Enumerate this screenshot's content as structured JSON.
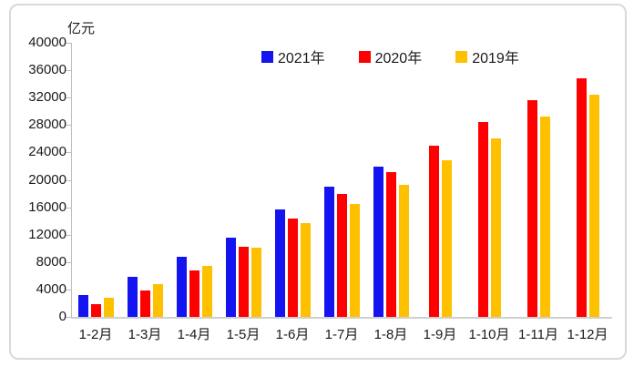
{
  "chart_data": {
    "type": "bar",
    "unit_label": "亿元",
    "ylabel": "亿元",
    "categories": [
      "1-2月",
      "1-3月",
      "1-4月",
      "1-5月",
      "1-6月",
      "1-7月",
      "1-8月",
      "1-9月",
      "1-10月",
      "1-11月",
      "1-12月"
    ],
    "series": [
      {
        "name": "2021年",
        "color": "#1414f0",
        "values": [
          3200,
          5900,
          8800,
          11600,
          15700,
          19000,
          21900,
          null,
          null,
          null,
          null
        ]
      },
      {
        "name": "2020年",
        "color": "#ff0000",
        "values": [
          1900,
          3800,
          6800,
          10300,
          14400,
          18000,
          21200,
          25000,
          28500,
          31600,
          34800
        ]
      },
      {
        "name": "2019年",
        "color": "#ffc000",
        "values": [
          2800,
          4800,
          7400,
          10100,
          13700,
          16500,
          19300,
          22900,
          26100,
          29300,
          32400
        ]
      }
    ],
    "ylim": [
      0,
      40000
    ],
    "ytick_step": 4000,
    "y_ticks": [
      0,
      4000,
      8000,
      12000,
      16000,
      20000,
      24000,
      28000,
      32000,
      36000,
      40000
    ],
    "grid": false,
    "legend_position": "top"
  },
  "colors": {
    "axis_line": "#bfbfbf",
    "baseline": "#d0d0d0",
    "frame_border": "#d9d9d9",
    "text": "#1a1a1a",
    "background": "#ffffff"
  }
}
